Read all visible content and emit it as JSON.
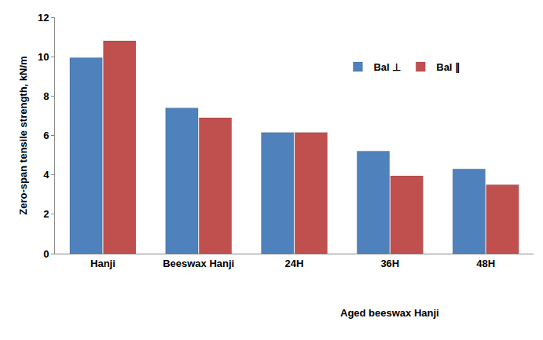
{
  "chart_data": {
    "type": "bar",
    "y_label": "Zero-span tensile strength, kN/m",
    "categories": [
      "Hanji",
      "Beeswax Hanji",
      "24H",
      "36H",
      "48H"
    ],
    "series": [
      {
        "name": "Bal ⊥",
        "color": "#4F81BD",
        "values": [
          9.95,
          7.4,
          6.15,
          5.2,
          4.3
        ]
      },
      {
        "name": "Bal ∥",
        "color": "#C0504D",
        "values": [
          10.8,
          6.9,
          6.15,
          3.95,
          3.5
        ]
      }
    ],
    "annotations": [
      {
        "text": "Aged beeswax Hanji",
        "categories": [
          "24H",
          "36H",
          "48H"
        ]
      }
    ],
    "ylim": [
      0,
      12
    ],
    "yticks": [
      0,
      2,
      4,
      6,
      8,
      10,
      12
    ],
    "grid": false,
    "legend": "upper right"
  }
}
